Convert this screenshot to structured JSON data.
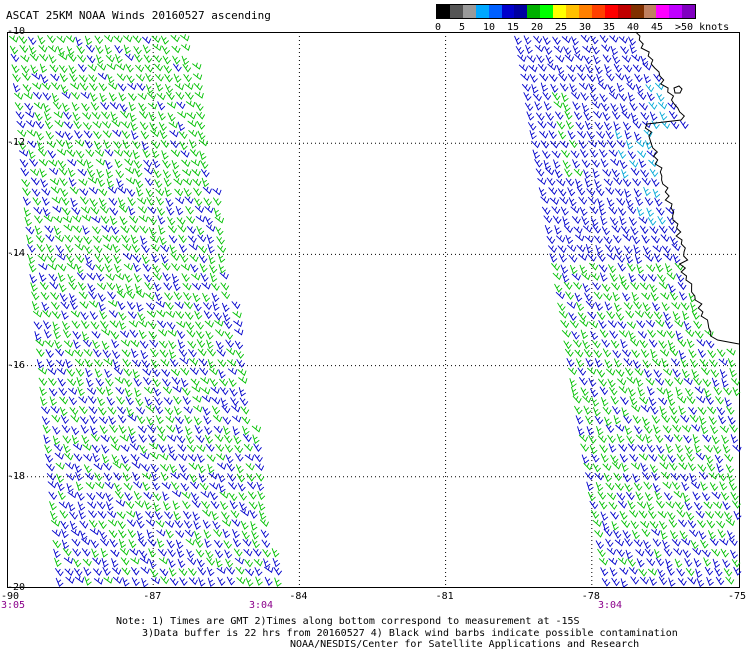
{
  "title": "ASCAT 25KM NOAA Winds 20160527 ascending",
  "legend": {
    "colors": [
      "#000000",
      "#555555",
      "#9a9a9a",
      "#00a8ff",
      "#0060ff",
      "#0000cc",
      "#0000a0",
      "#00b000",
      "#00ff00",
      "#ffff00",
      "#ffc000",
      "#ff8000",
      "#ff4000",
      "#ff0000",
      "#c00000",
      "#803000",
      "#c08060",
      "#ff00ff",
      "#c000ff",
      "#8000c0"
    ],
    "ticks": [
      "0",
      "5",
      "10",
      "15",
      "20",
      "25",
      "30",
      "35",
      "40",
      "45",
      ">50 knots"
    ]
  },
  "axes": {
    "lat_labels": [
      "-10",
      "-12",
      "-14",
      "-16",
      "-18",
      "-20"
    ],
    "lon_labels": [
      "-90",
      "-87",
      "-84",
      "-81",
      "-78",
      "-75"
    ],
    "lat_range": [
      -20,
      -10
    ],
    "lon_range": [
      -90,
      -75
    ]
  },
  "time_labels": [
    "3:05",
    "3:04",
    "3:04"
  ],
  "notes": {
    "line1": "Note: 1) Times are GMT 2)Times along bottom correspond to measurement at -15S",
    "line2": "3)Data buffer is 22 hrs from 20160527 4) Black wind barbs indicate possible contamination",
    "line3": "NOAA/NESDIS/Center for Satellite Applications and Research"
  },
  "colors": {
    "barb_low": "#00c000",
    "barb_mid": "#0000cc",
    "barb_light": "#00a8d8",
    "coast": "#000000",
    "grid": "#000000",
    "time": "#8b008b"
  }
}
